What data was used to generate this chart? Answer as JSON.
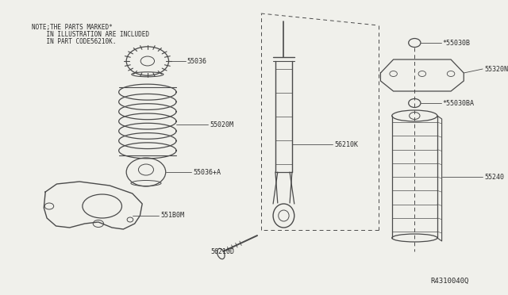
{
  "bg_color": "#f0f0eb",
  "line_color": "#4a4a4a",
  "text_color": "#2a2a2a",
  "note_text": [
    "NOTE;THE PARTS MARKED*",
    "    IN ILLUSTRATION ARE INCLUDED",
    "    IN PART CODE56210K."
  ],
  "diagram_id": "R4310040Q"
}
